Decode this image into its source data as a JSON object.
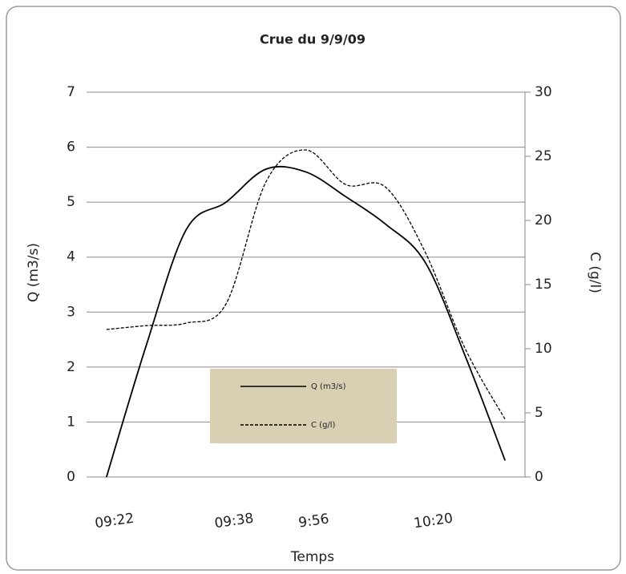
{
  "chart_data": {
    "type": "line",
    "title": "Crue du 9/9/09",
    "x_label": "Temps",
    "y_label": "Q (m3/s)",
    "y2_label": "C (g/l)",
    "categories": [
      "09:22",
      null,
      null,
      "09:38",
      null,
      "9:56",
      null,
      null,
      "10:20",
      null,
      null
    ],
    "series": [
      {
        "name": "Q (m3/s)",
        "color": "#000000",
        "dash": "solid",
        "values": [
          0,
          2.4,
          4.5,
          5.0,
          5.6,
          5.55,
          5.1,
          4.6,
          3.9,
          2.2,
          0.3
        ]
      },
      {
        "name": "C (g/l)",
        "color": "#000000",
        "dash": "dashed",
        "axis": "y2",
        "values": [
          11.5,
          11.8,
          12.0,
          13.5,
          23,
          25.5,
          22.8,
          22.6,
          17.5,
          10,
          4.5
        ]
      }
    ],
    "ylim": [
      0,
      7
    ],
    "yticks": [
      0,
      1,
      2,
      3,
      4,
      5,
      6,
      7
    ],
    "y2lim": [
      0,
      30
    ],
    "y2ticks": [
      0,
      5,
      10,
      15,
      20,
      25,
      30
    ],
    "grid": true,
    "legend": "center",
    "smooth": true
  }
}
